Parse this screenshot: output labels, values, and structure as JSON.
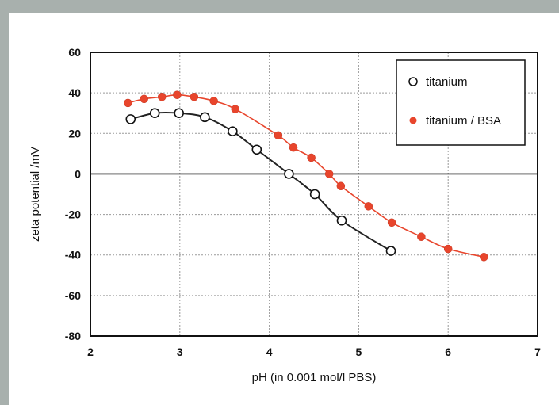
{
  "chart_data": {
    "type": "scatter",
    "xlabel": "pH (in 0.001 mol/l PBS)",
    "ylabel": "zeta potential /mV",
    "xlim": [
      2,
      7
    ],
    "ylim": [
      -80,
      60
    ],
    "xticks": [
      2,
      3,
      4,
      5,
      6,
      7
    ],
    "yticks": [
      60,
      40,
      20,
      0,
      -20,
      -40,
      -60,
      -80
    ],
    "grid": true,
    "legend_position": "top-right",
    "series": [
      {
        "name": "titanium",
        "marker": "open-circle",
        "color": "#222222",
        "x": [
          2.45,
          2.72,
          2.99,
          3.28,
          3.59,
          3.86,
          4.22,
          4.51,
          4.81,
          5.36
        ],
        "y": [
          27,
          30,
          30,
          28,
          21,
          12,
          0,
          -10,
          -23,
          -38
        ]
      },
      {
        "name": "titanium / BSA",
        "marker": "filled-circle",
        "color": "#e8452c",
        "x": [
          2.42,
          2.6,
          2.8,
          2.97,
          3.16,
          3.38,
          3.62,
          4.1,
          4.27,
          4.47,
          4.67,
          4.8,
          5.11,
          5.37,
          5.7,
          6.0,
          6.4
        ],
        "y": [
          35,
          37,
          38,
          39,
          38,
          36,
          32,
          19,
          13,
          8,
          0,
          -6,
          -16,
          -24,
          -31,
          -37,
          -41
        ]
      }
    ]
  }
}
